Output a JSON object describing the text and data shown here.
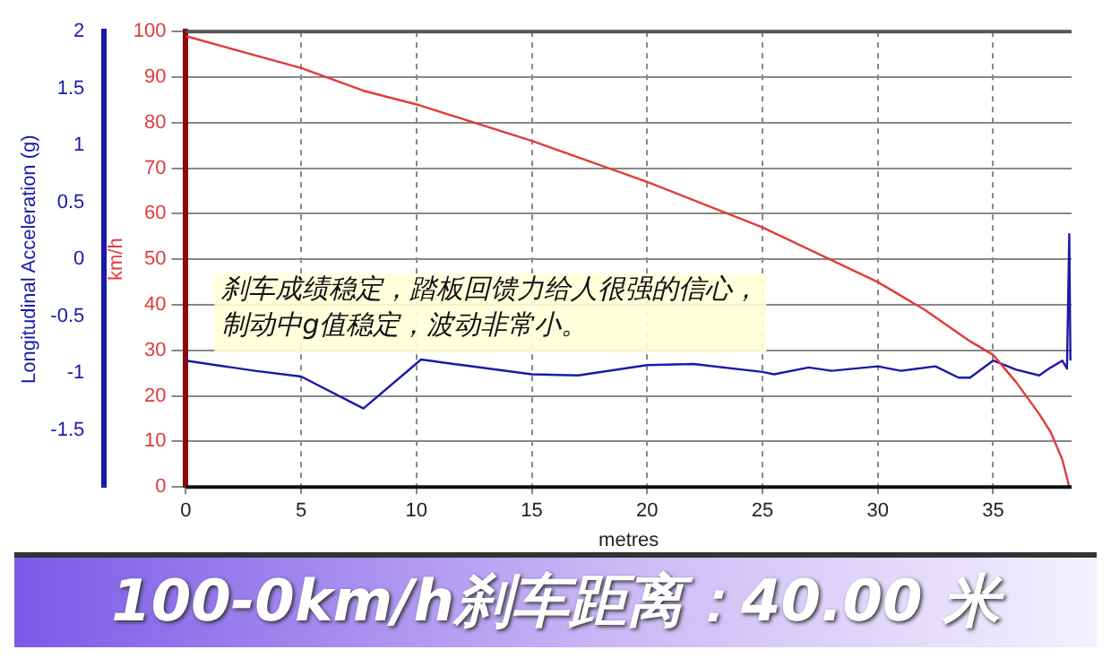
{
  "chart_data": {
    "type": "line",
    "title": "100-0km/h刹车距离：40.00 米",
    "xlabel": "metres",
    "ylabel": "km/h",
    "y2label": "Longitudinal Acceleration (g)",
    "annotations": [
      "刹车成绩稳定，踏板回馈力给人很强的信心，制动中g值稳定，波动非常小。"
    ],
    "series": [
      {
        "color": "#e03c3c",
        "x": [
          0,
          5,
          7.7,
          10,
          15,
          20,
          25,
          30,
          32,
          34,
          35,
          36,
          37,
          37.5,
          38,
          38.3
        ],
        "values": [
          99,
          92,
          87,
          84,
          76,
          67,
          57,
          45,
          39,
          32,
          29,
          23,
          16,
          12,
          6,
          0
        ]
      },
      {
        "color": "#1a1aa8",
        "axis": "y2",
        "x": [
          0,
          3,
          5,
          7.7,
          10.2,
          12,
          15,
          17,
          20,
          22,
          25,
          25.5,
          27,
          28,
          30,
          31,
          32.5,
          33.5,
          34,
          35,
          36,
          37,
          37.5,
          38,
          38.2,
          38.3,
          38.35
        ],
        "values": [
          -0.89,
          -0.98,
          -1.03,
          -1.31,
          -0.88,
          -0.93,
          -1.01,
          -1.02,
          -0.93,
          -0.92,
          -0.99,
          -1.01,
          -0.95,
          -0.98,
          -0.94,
          -0.98,
          -0.94,
          -1.04,
          -1.04,
          -0.89,
          -0.97,
          -1.02,
          -0.95,
          -0.89,
          -0.96,
          0.22,
          -0.89
        ]
      }
    ],
    "xlim": [
      0,
      38.4
    ],
    "xticks": [
      0,
      5,
      10,
      15,
      20,
      25,
      30,
      35
    ],
    "ylim": [
      0,
      100
    ],
    "yticks": [
      0,
      10,
      20,
      30,
      40,
      50,
      60,
      70,
      80,
      90,
      100
    ],
    "y2lim": [
      -2,
      2
    ],
    "y2ticks": [
      -1.5,
      -1,
      -0.5,
      0,
      0.5,
      1,
      1.5,
      2
    ],
    "grid": true,
    "legend": false,
    "marker": "none",
    "line_style": "solid"
  }
}
